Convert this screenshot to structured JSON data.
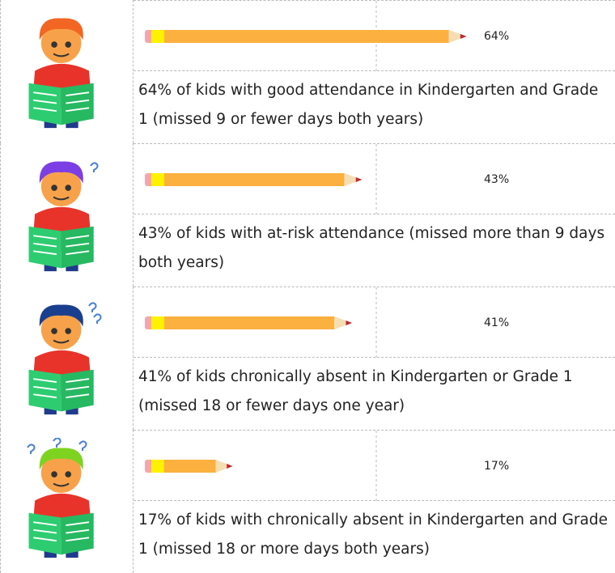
{
  "chart_data": {
    "type": "pencil-bar",
    "categories": [
      "64% of kids with good attendance in Kindergarten and Grade 1 (missed 9 or fewer days both years)",
      "43% of kids with at-risk attendance (missed more than 9 days both years)",
      "41% of kids chronically absent in Kindergarten or Grade 1 (missed 18 or fewer days one year)",
      "17% of kids with chronically absent in Kindergarten and Grade 1 (missed 18 or more days both years)"
    ],
    "values": [
      64,
      43,
      41,
      17
    ],
    "value_labels": [
      "64%",
      "43%",
      "41%",
      "17%"
    ],
    "color": "#fbb040"
  }
}
